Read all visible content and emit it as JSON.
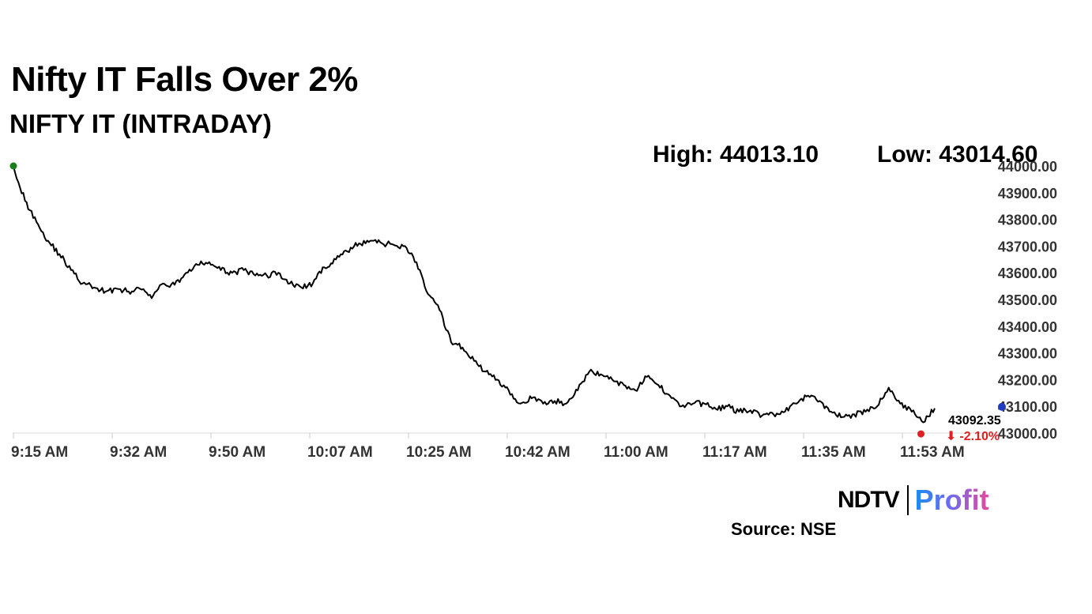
{
  "header": {
    "title": "Nifty IT Falls Over 2%",
    "subtitle": "NIFTY IT (INTRADAY)"
  },
  "stats": {
    "high_label": "High: 44013.10",
    "low_label": "Low: 43014.60"
  },
  "colors": {
    "line": "#000000",
    "open_marker": "#1a7f1a",
    "low_marker": "#e02020",
    "close_marker": "#1f3bbf",
    "change_text": "#e02020",
    "axis_text": "#333333"
  },
  "chart_data": {
    "type": "line",
    "title": "NIFTY IT (INTRADAY)",
    "xlabel": "",
    "ylabel": "",
    "x_tick_labels": [
      "9:15 AM",
      "9:32 AM",
      "9:50 AM",
      "10:07 AM",
      "10:25 AM",
      "10:42 AM",
      "11:00 AM",
      "11:17 AM",
      "11:35 AM",
      "11:53 AM"
    ],
    "y_tick_labels": [
      "44000.00",
      "43900.00",
      "43800.00",
      "43700.00",
      "43600.00",
      "43500.00",
      "43400.00",
      "43300.00",
      "43200.00",
      "43100.00",
      "43000.00"
    ],
    "y_ticks": [
      44000,
      43900,
      43800,
      43700,
      43600,
      43500,
      43400,
      43300,
      43200,
      43100,
      43000
    ],
    "ylim": [
      43000,
      44000
    ],
    "grid": false,
    "legend": "none",
    "series": [
      {
        "x": [
          "9:15",
          "9:17",
          "9:19",
          "9:21",
          "9:23",
          "9:25",
          "9:27",
          "9:29",
          "9:31",
          "9:33",
          "9:35",
          "9:37",
          "9:39",
          "9:41",
          "9:43",
          "9:45",
          "9:47",
          "9:49",
          "9:51",
          "9:53",
          "9:55",
          "9:57",
          "9:59",
          "10:01",
          "10:03",
          "10:05",
          "10:07",
          "10:09",
          "10:11",
          "10:13",
          "10:15",
          "10:17",
          "10:19",
          "10:21",
          "10:23",
          "10:25",
          "10:27",
          "10:29",
          "10:31",
          "10:33",
          "10:35",
          "10:37",
          "10:39",
          "10:41",
          "10:43",
          "10:45",
          "10:47",
          "10:49",
          "10:51",
          "10:53",
          "10:55",
          "10:57",
          "10:59",
          "11:01",
          "11:03",
          "11:05",
          "11:07",
          "11:09",
          "11:11",
          "11:13",
          "11:15",
          "11:17",
          "11:19",
          "11:21",
          "11:23",
          "11:25",
          "11:27",
          "11:29",
          "11:31",
          "11:33",
          "11:35",
          "11:37",
          "11:39",
          "11:41",
          "11:43",
          "11:45",
          "11:47",
          "11:49",
          "11:51",
          "11:53",
          "11:55"
        ],
        "values": [
          44000,
          43870,
          43790,
          43720,
          43670,
          43610,
          43560,
          43545,
          43530,
          43540,
          43530,
          43540,
          43505,
          43560,
          43555,
          43600,
          43630,
          43640,
          43610,
          43600,
          43610,
          43590,
          43590,
          43600,
          43560,
          43545,
          43560,
          43620,
          43650,
          43680,
          43710,
          43720,
          43710,
          43705,
          43700,
          43640,
          43520,
          43460,
          43340,
          43320,
          43270,
          43230,
          43200,
          43160,
          43110,
          43130,
          43110,
          43120,
          43110,
          43160,
          43230,
          43220,
          43200,
          43180,
          43160,
          43210,
          43180,
          43140,
          43100,
          43110,
          43110,
          43090,
          43100,
          43080,
          43085,
          43065,
          43070,
          43080,
          43110,
          43140,
          43120,
          43080,
          43060,
          43070,
          43080,
          43100,
          43170,
          43110,
          43080,
          43040,
          43092.35
        ]
      }
    ],
    "markers": {
      "open": 44000,
      "low": 43014.6,
      "close": 43092.35
    },
    "annotations": {
      "last_value": "43092.35",
      "change": "-2.10%"
    }
  },
  "footer": {
    "brand_ndtv": "NDTV",
    "brand_profit": "Profit",
    "source": "Source: NSE"
  }
}
